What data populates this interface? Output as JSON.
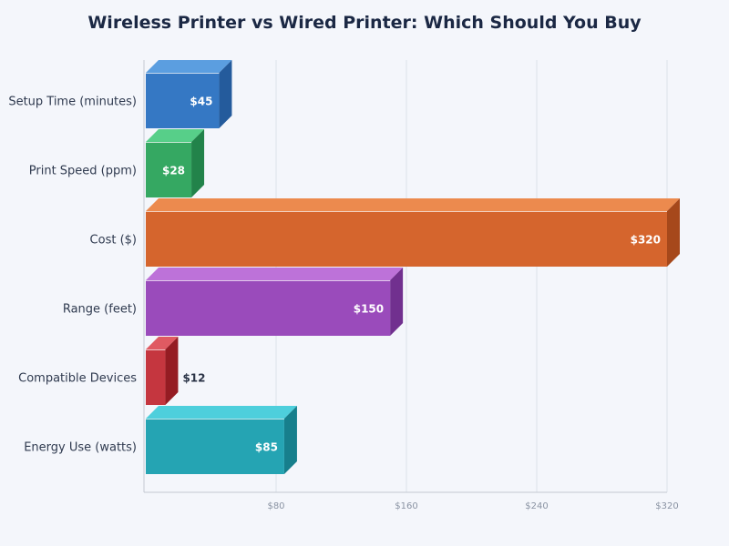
{
  "chart_data": {
    "type": "bar",
    "orientation": "horizontal",
    "style": "3d",
    "title": "Wireless Printer vs Wired Printer: Which Should You Buy",
    "xlabel": "",
    "ylabel": "",
    "categories": [
      "Setup Time (minutes)",
      "Print Speed (ppm)",
      "Cost ($)",
      "Range (feet)",
      "Compatible Devices",
      "Energy Use (watts)"
    ],
    "values": [
      45,
      28,
      320,
      150,
      12,
      85
    ],
    "value_labels": [
      "$45",
      "$28",
      "$320",
      "$150",
      "$12",
      "$85"
    ],
    "colors": [
      "#3578c4",
      "#35a862",
      "#d5652d",
      "#9a4bbb",
      "#c5363f",
      "#25a4b3"
    ],
    "top_colors": [
      "#5b9ee0",
      "#57cf89",
      "#ec8a4e",
      "#bd72d9",
      "#e05a62",
      "#4ecfdc"
    ],
    "side_colors": [
      "#245b9c",
      "#22834a",
      "#a6481b",
      "#71308f",
      "#951c23",
      "#177f8c"
    ],
    "x_ticks": [
      80,
      160,
      240,
      320
    ],
    "x_tick_labels": [
      "$80",
      "$160",
      "$240",
      "$320"
    ],
    "xlim": [
      0,
      320
    ],
    "grid": true,
    "legend": null
  }
}
